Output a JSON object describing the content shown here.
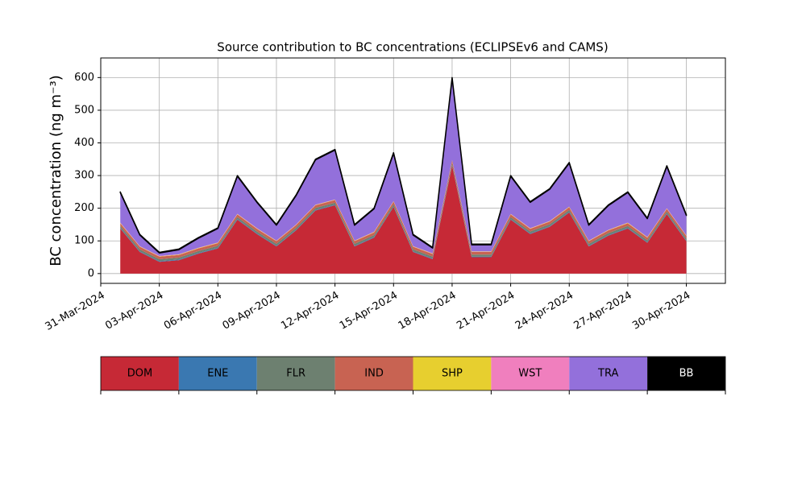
{
  "chart_data": {
    "type": "stacked_area",
    "title": "Source contribution to BC concentrations (ECLIPSEv6 and CAMS)",
    "y_label": "BC concentration (ng m⁻³)",
    "x": [
      "2024-04-01",
      "2024-04-02",
      "2024-04-03",
      "2024-04-04",
      "2024-04-05",
      "2024-04-06",
      "2024-04-07",
      "2024-04-08",
      "2024-04-09",
      "2024-04-10",
      "2024-04-11",
      "2024-04-12",
      "2024-04-13",
      "2024-04-14",
      "2024-04-15",
      "2024-04-16",
      "2024-04-17",
      "2024-04-18",
      "2024-04-19",
      "2024-04-20",
      "2024-04-21",
      "2024-04-22",
      "2024-04-23",
      "2024-04-24",
      "2024-04-25",
      "2024-04-26",
      "2024-04-27",
      "2024-04-28",
      "2024-04-29",
      "2024-04-30"
    ],
    "series": [
      {
        "name": "DOM",
        "color": "#c62936",
        "values": [
          138,
          66,
          36,
          41,
          61,
          77,
          165,
          121,
          83,
          132,
          193,
          209,
          83,
          110,
          204,
          66,
          44,
          330,
          50,
          50,
          165,
          121,
          143,
          187,
          83,
          116,
          138,
          94,
          182,
          99
        ]
      },
      {
        "name": "ENE",
        "color": "#3a78b1",
        "values": [
          2,
          2,
          2,
          2,
          2,
          2,
          2,
          2,
          2,
          2,
          2,
          2,
          2,
          2,
          2,
          2,
          2,
          2,
          2,
          2,
          2,
          2,
          2,
          2,
          2,
          2,
          2,
          2,
          2,
          2
        ]
      },
      {
        "name": "FLR",
        "color": "#6d8070",
        "values": [
          6,
          6,
          6,
          6,
          6,
          6,
          6,
          6,
          6,
          6,
          6,
          6,
          6,
          6,
          6,
          6,
          6,
          6,
          6,
          6,
          6,
          6,
          6,
          6,
          6,
          6,
          6,
          6,
          6,
          6
        ]
      },
      {
        "name": "IND",
        "color": "#c86352",
        "values": [
          8,
          8,
          8,
          8,
          8,
          8,
          8,
          8,
          8,
          8,
          8,
          8,
          8,
          8,
          8,
          8,
          8,
          8,
          8,
          8,
          8,
          8,
          8,
          8,
          8,
          8,
          8,
          8,
          8,
          8
        ]
      },
      {
        "name": "SHP",
        "color": "#e7cf2f",
        "values": [
          1,
          1,
          1,
          1,
          1,
          1,
          1,
          1,
          1,
          1,
          1,
          1,
          1,
          1,
          1,
          1,
          1,
          1,
          1,
          1,
          1,
          1,
          1,
          1,
          1,
          1,
          1,
          1,
          1,
          1
        ]
      },
      {
        "name": "WST",
        "color": "#f07fbe",
        "values": [
          1,
          1,
          1,
          1,
          1,
          1,
          1,
          1,
          1,
          1,
          1,
          1,
          1,
          1,
          1,
          1,
          1,
          1,
          1,
          1,
          1,
          1,
          1,
          1,
          1,
          1,
          1,
          1,
          1,
          1
        ]
      },
      {
        "name": "TRA",
        "color": "#9370db",
        "values": [
          92,
          34,
          9,
          14,
          29,
          43,
          115,
          79,
          47,
          88,
          137,
          151,
          47,
          70,
          146,
          34,
          16,
          250,
          20,
          20,
          115,
          79,
          97,
          133,
          47,
          74,
          92,
          56,
          128,
          61
        ]
      },
      {
        "name": "BB",
        "color": "#000000",
        "values": [
          2,
          2,
          2,
          2,
          2,
          2,
          2,
          2,
          2,
          2,
          2,
          2,
          2,
          2,
          2,
          2,
          2,
          2,
          2,
          2,
          2,
          2,
          2,
          2,
          2,
          2,
          2,
          2,
          2,
          2
        ]
      }
    ],
    "xlim": [
      "2024-03-31",
      "2024-05-02"
    ],
    "xticks": [
      {
        "value": "2024-03-31",
        "label": "31-Mar-2024"
      },
      {
        "value": "2024-04-03",
        "label": "03-Apr-2024"
      },
      {
        "value": "2024-04-06",
        "label": "06-Apr-2024"
      },
      {
        "value": "2024-04-09",
        "label": "09-Apr-2024"
      },
      {
        "value": "2024-04-12",
        "label": "12-Apr-2024"
      },
      {
        "value": "2024-04-15",
        "label": "15-Apr-2024"
      },
      {
        "value": "2024-04-18",
        "label": "18-Apr-2024"
      },
      {
        "value": "2024-04-21",
        "label": "21-Apr-2024"
      },
      {
        "value": "2024-04-24",
        "label": "24-Apr-2024"
      },
      {
        "value": "2024-04-27",
        "label": "27-Apr-2024"
      },
      {
        "value": "2024-04-30",
        "label": "30-Apr-2024"
      }
    ],
    "ylim": [
      -30,
      660
    ],
    "yticks": [
      0,
      100,
      200,
      300,
      400,
      500,
      600
    ],
    "grid": true
  }
}
